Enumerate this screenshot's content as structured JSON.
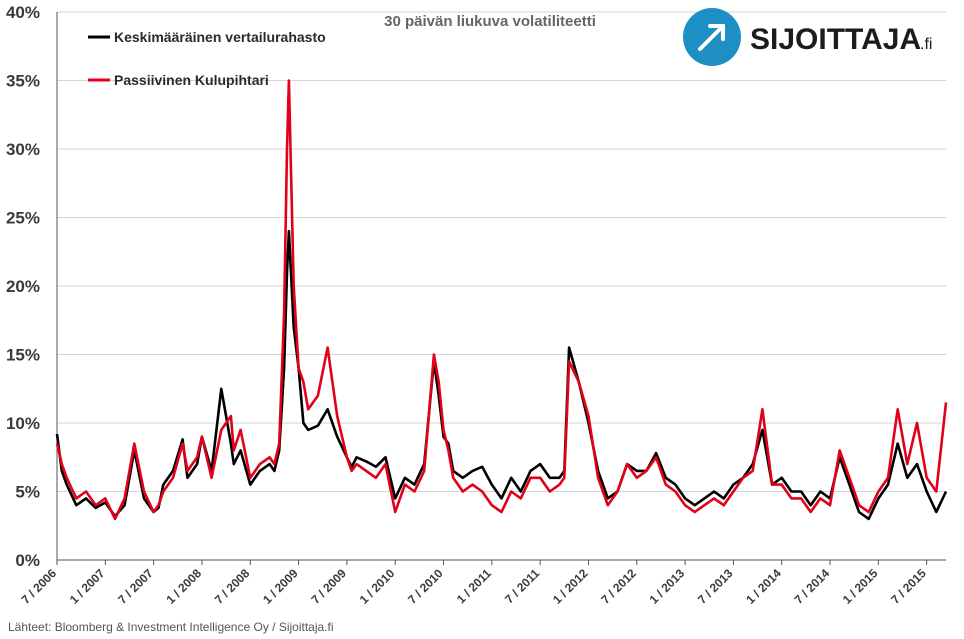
{
  "chart_data": {
    "type": "line",
    "title": "30 päivän liukuva volatiliteetti",
    "xlabel": "",
    "ylabel": "",
    "ylim": [
      0,
      40
    ],
    "yticks": [
      "0%",
      "5%",
      "10%",
      "15%",
      "20%",
      "25%",
      "30%",
      "35%",
      "40%"
    ],
    "xticks": [
      "7 / 2006",
      "1 / 2007",
      "7 / 2007",
      "1 / 2008",
      "7 / 2008",
      "1 / 2009",
      "7 / 2009",
      "1 / 2010",
      "7 / 2010",
      "1 / 2011",
      "7 / 2011",
      "1 / 2012",
      "7 / 2012",
      "1 / 2013",
      "7 / 2013",
      "1 / 2014",
      "7 / 2014",
      "1 / 2015",
      "7 / 2015"
    ],
    "x_range": [
      2006.5,
      2015.7
    ],
    "grid": true,
    "legend_position": "top-left",
    "series": [
      {
        "name": "Keskimääräinen vertailurahasto",
        "color": "#000000",
        "x": [
          2006.5,
          2006.55,
          2006.6,
          2006.7,
          2006.8,
          2006.9,
          2007.0,
          2007.1,
          2007.2,
          2007.3,
          2007.4,
          2007.5,
          2007.55,
          2007.6,
          2007.7,
          2007.8,
          2007.85,
          2007.95,
          2008.0,
          2008.1,
          2008.2,
          2008.3,
          2008.33,
          2008.4,
          2008.5,
          2008.6,
          2008.7,
          2008.75,
          2008.8,
          2008.85,
          2008.88,
          2008.9,
          2008.95,
          2009.0,
          2009.05,
          2009.1,
          2009.2,
          2009.3,
          2009.4,
          2009.5,
          2009.55,
          2009.6,
          2009.7,
          2009.8,
          2009.9,
          2010.0,
          2010.1,
          2010.2,
          2010.3,
          2010.4,
          2010.45,
          2010.5,
          2010.55,
          2010.6,
          2010.7,
          2010.8,
          2010.9,
          2011.0,
          2011.1,
          2011.2,
          2011.3,
          2011.4,
          2011.5,
          2011.6,
          2011.7,
          2011.75,
          2011.8,
          2011.9,
          2012.0,
          2012.1,
          2012.2,
          2012.3,
          2012.4,
          2012.5,
          2012.6,
          2012.7,
          2012.8,
          2012.9,
          2013.0,
          2013.1,
          2013.2,
          2013.3,
          2013.4,
          2013.5,
          2013.6,
          2013.7,
          2013.8,
          2013.9,
          2014.0,
          2014.1,
          2014.2,
          2014.3,
          2014.4,
          2014.5,
          2014.6,
          2014.7,
          2014.8,
          2014.9,
          2015.0,
          2015.1,
          2015.2,
          2015.3,
          2015.4,
          2015.5,
          2015.6,
          2015.7
        ],
        "values": [
          9.2,
          6.5,
          5.5,
          4.0,
          4.5,
          3.8,
          4.2,
          3.2,
          4.0,
          8.0,
          4.5,
          3.5,
          3.8,
          5.5,
          6.5,
          8.8,
          6.0,
          7.0,
          9.0,
          6.5,
          12.5,
          8.5,
          7.0,
          8.0,
          5.5,
          6.5,
          7.0,
          6.5,
          8.0,
          14.0,
          21.0,
          24.0,
          17.0,
          14.0,
          10.0,
          9.5,
          9.8,
          11.0,
          9.0,
          7.5,
          6.8,
          7.5,
          7.2,
          6.8,
          7.5,
          4.5,
          6.0,
          5.5,
          7.0,
          14.5,
          12.0,
          9.0,
          8.5,
          6.5,
          6.0,
          6.5,
          6.8,
          5.5,
          4.5,
          6.0,
          5.0,
          6.5,
          7.0,
          6.0,
          6.0,
          6.5,
          15.5,
          13.0,
          10.0,
          6.5,
          4.5,
          5.0,
          7.0,
          6.5,
          6.5,
          7.8,
          6.0,
          5.5,
          4.5,
          4.0,
          4.5,
          5.0,
          4.5,
          5.5,
          6.0,
          7.0,
          9.5,
          5.5,
          6.0,
          5.0,
          5.0,
          4.0,
          5.0,
          4.5,
          7.5,
          5.5,
          3.5,
          3.0,
          4.5,
          5.5,
          8.5,
          6.0,
          7.0,
          5.0,
          3.5,
          5.0
        ]
      },
      {
        "name": "Passiivinen Kulupihtari",
        "color": "#e2001a",
        "x": [
          2006.5,
          2006.55,
          2006.6,
          2006.7,
          2006.8,
          2006.9,
          2007.0,
          2007.1,
          2007.2,
          2007.3,
          2007.4,
          2007.5,
          2007.55,
          2007.6,
          2007.7,
          2007.8,
          2007.85,
          2007.95,
          2008.0,
          2008.1,
          2008.2,
          2008.3,
          2008.33,
          2008.4,
          2008.5,
          2008.6,
          2008.7,
          2008.75,
          2008.8,
          2008.85,
          2008.88,
          2008.9,
          2008.95,
          2009.0,
          2009.05,
          2009.1,
          2009.2,
          2009.3,
          2009.4,
          2009.5,
          2009.55,
          2009.6,
          2009.7,
          2009.8,
          2009.9,
          2010.0,
          2010.1,
          2010.2,
          2010.3,
          2010.4,
          2010.45,
          2010.5,
          2010.55,
          2010.6,
          2010.7,
          2010.8,
          2010.9,
          2011.0,
          2011.1,
          2011.2,
          2011.3,
          2011.4,
          2011.5,
          2011.6,
          2011.7,
          2011.75,
          2011.8,
          2011.9,
          2012.0,
          2012.1,
          2012.2,
          2012.3,
          2012.4,
          2012.5,
          2012.6,
          2012.7,
          2012.8,
          2012.9,
          2013.0,
          2013.1,
          2013.2,
          2013.3,
          2013.4,
          2013.5,
          2013.6,
          2013.7,
          2013.8,
          2013.9,
          2014.0,
          2014.1,
          2014.2,
          2014.3,
          2014.4,
          2014.5,
          2014.6,
          2014.7,
          2014.8,
          2014.9,
          2015.0,
          2015.1,
          2015.2,
          2015.3,
          2015.4,
          2015.5,
          2015.6,
          2015.7
        ],
        "values": [
          8.5,
          7.0,
          6.0,
          4.5,
          5.0,
          4.0,
          4.5,
          3.0,
          4.5,
          8.5,
          5.0,
          3.5,
          4.0,
          5.0,
          6.0,
          8.5,
          6.5,
          7.5,
          9.0,
          6.0,
          9.5,
          10.5,
          8.0,
          9.5,
          6.0,
          7.0,
          7.5,
          7.0,
          8.5,
          18.0,
          30.0,
          35.0,
          20.0,
          14.0,
          13.0,
          11.0,
          12.0,
          15.5,
          10.5,
          7.5,
          6.5,
          7.0,
          6.5,
          6.0,
          7.0,
          3.5,
          5.5,
          5.0,
          6.5,
          15.0,
          13.0,
          9.5,
          8.0,
          6.0,
          5.0,
          5.5,
          5.0,
          4.0,
          3.5,
          5.0,
          4.5,
          6.0,
          6.0,
          5.0,
          5.5,
          6.0,
          14.5,
          13.0,
          10.5,
          6.0,
          4.0,
          5.0,
          7.0,
          6.0,
          6.5,
          7.5,
          5.5,
          5.0,
          4.0,
          3.5,
          4.0,
          4.5,
          4.0,
          5.0,
          6.0,
          6.5,
          11.0,
          5.5,
          5.5,
          4.5,
          4.5,
          3.5,
          4.5,
          4.0,
          8.0,
          6.0,
          4.0,
          3.5,
          5.0,
          6.0,
          11.0,
          7.0,
          10.0,
          6.0,
          5.0,
          11.5
        ]
      }
    ]
  },
  "source": "Lähteet: Bloomberg & Investment Intelligence Oy / Sijoittaja.fi",
  "brand": {
    "name": "SIJOITTAJA",
    "suffix": ".fi"
  }
}
